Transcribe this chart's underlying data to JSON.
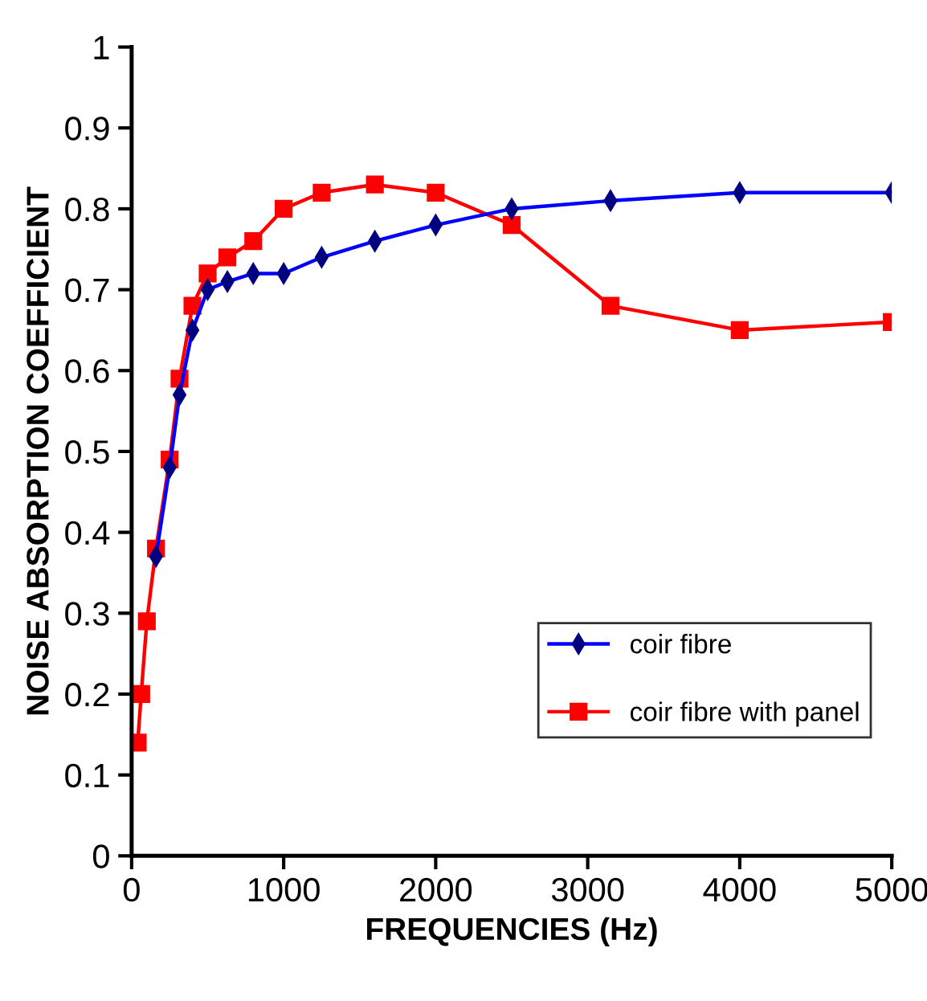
{
  "chart_data": {
    "type": "line",
    "xlabel": "FREQUENCIES (Hz)",
    "ylabel": "NOISE ABSORPTION COEFFICIENT",
    "xlim": [
      0,
      5000
    ],
    "xticks": [
      0,
      1000,
      2000,
      3000,
      4000,
      5000
    ],
    "ylim": [
      0,
      1
    ],
    "yticks": [
      0,
      0.1,
      0.2,
      0.3,
      0.4,
      0.5,
      0.6,
      0.7,
      0.8,
      0.9,
      1
    ],
    "grid": false,
    "legend": "bottom right",
    "series": [
      {
        "name": "coir fibre",
        "color": "#0000ff",
        "marker": "diamond",
        "x": [
          160,
          250,
          315,
          400,
          500,
          630,
          800,
          1000,
          1250,
          1600,
          2000,
          2500,
          3150,
          4000,
          5000
        ],
        "values": [
          0.37,
          0.48,
          0.57,
          0.65,
          0.7,
          0.71,
          0.72,
          0.72,
          0.74,
          0.76,
          0.78,
          0.8,
          0.81,
          0.82,
          0.82
        ]
      },
      {
        "name": "coir fibre with panel",
        "color": "#ff0000",
        "marker": "square",
        "x": [
          40,
          63,
          100,
          160,
          250,
          315,
          400,
          500,
          630,
          800,
          1000,
          1250,
          1600,
          2000,
          2500,
          3150,
          4000,
          5000
        ],
        "values": [
          0.14,
          0.2,
          0.29,
          0.38,
          0.49,
          0.59,
          0.68,
          0.72,
          0.74,
          0.76,
          0.8,
          0.82,
          0.83,
          0.82,
          0.78,
          0.68,
          0.65,
          0.66
        ]
      }
    ]
  }
}
